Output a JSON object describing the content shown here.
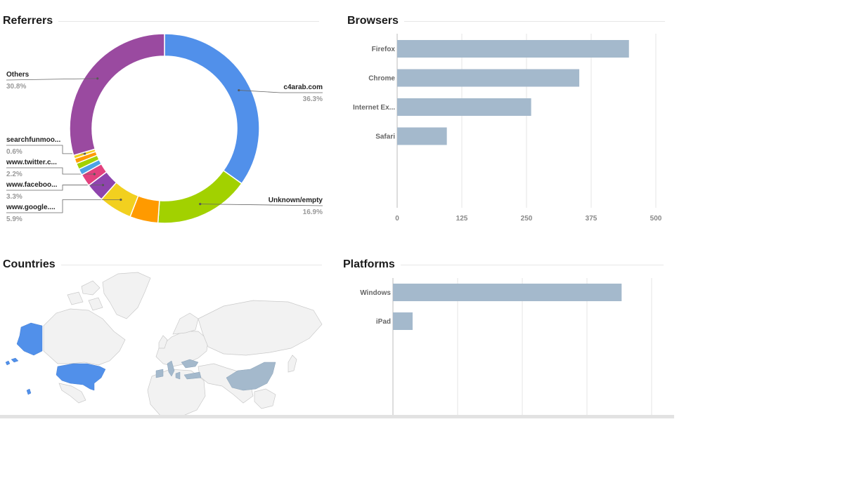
{
  "panels": {
    "referrers": {
      "title": "Referrers"
    },
    "browsers": {
      "title": "Browsers"
    },
    "countries": {
      "title": "Countries"
    },
    "platforms": {
      "title": "Platforms"
    }
  },
  "chart_data": [
    {
      "id": "referrers",
      "type": "pie",
      "donut": true,
      "slices": [
        {
          "label": "c4arab.com",
          "value": 36.3,
          "pct_label": "36.3%",
          "color": "#5190ea"
        },
        {
          "label": "Unknown/empty",
          "value": 16.9,
          "pct_label": "16.9%",
          "color": "#a2d100"
        },
        {
          "label": "",
          "value": 5.0,
          "pct_label": "",
          "color": "#ff9a00"
        },
        {
          "label": "www.google....",
          "value": 5.9,
          "pct_label": "5.9%",
          "color": "#f2d01f"
        },
        {
          "label": "www.faceboo...",
          "value": 3.3,
          "pct_label": "3.3%",
          "color": "#8e44ad"
        },
        {
          "label": "www.twitter.c...",
          "value": 2.2,
          "pct_label": "2.2%",
          "color": "#e2417e"
        },
        {
          "label": "",
          "value": 1.1,
          "pct_label": "",
          "color": "#4da3e5"
        },
        {
          "label": "",
          "value": 1.1,
          "pct_label": "",
          "color": "#a2d100"
        },
        {
          "label": "",
          "value": 0.9,
          "pct_label": "",
          "color": "#ff9a00"
        },
        {
          "label": "searchfunmoo...",
          "value": 0.6,
          "pct_label": "0.6%",
          "color": "#f2d01f"
        },
        {
          "label": "Others",
          "value": 30.8,
          "pct_label": "30.8%",
          "color": "#9a4aa0"
        }
      ]
    },
    {
      "id": "browsers",
      "type": "bar",
      "orientation": "horizontal",
      "categories": [
        "Firefox",
        "Chrome",
        "Internet Ex...",
        "Safari"
      ],
      "values": [
        448,
        352,
        259,
        96
      ],
      "xlim": [
        0,
        500
      ],
      "xticks": [
        0,
        125,
        250,
        375,
        500
      ],
      "bar_color": "#a4b9cc",
      "grid": true
    },
    {
      "id": "countries",
      "type": "map",
      "highlight_color_strong": "#5190ea",
      "highlight_color_light": "#a4b9cc",
      "base_color": "#f2f2f2"
    },
    {
      "id": "platforms",
      "type": "bar",
      "orientation": "horizontal",
      "categories": [
        "Windows",
        "iPad"
      ],
      "values": [
        442,
        38
      ],
      "xlim": [
        0,
        500
      ],
      "bar_color": "#a4b9cc",
      "grid": true
    }
  ]
}
